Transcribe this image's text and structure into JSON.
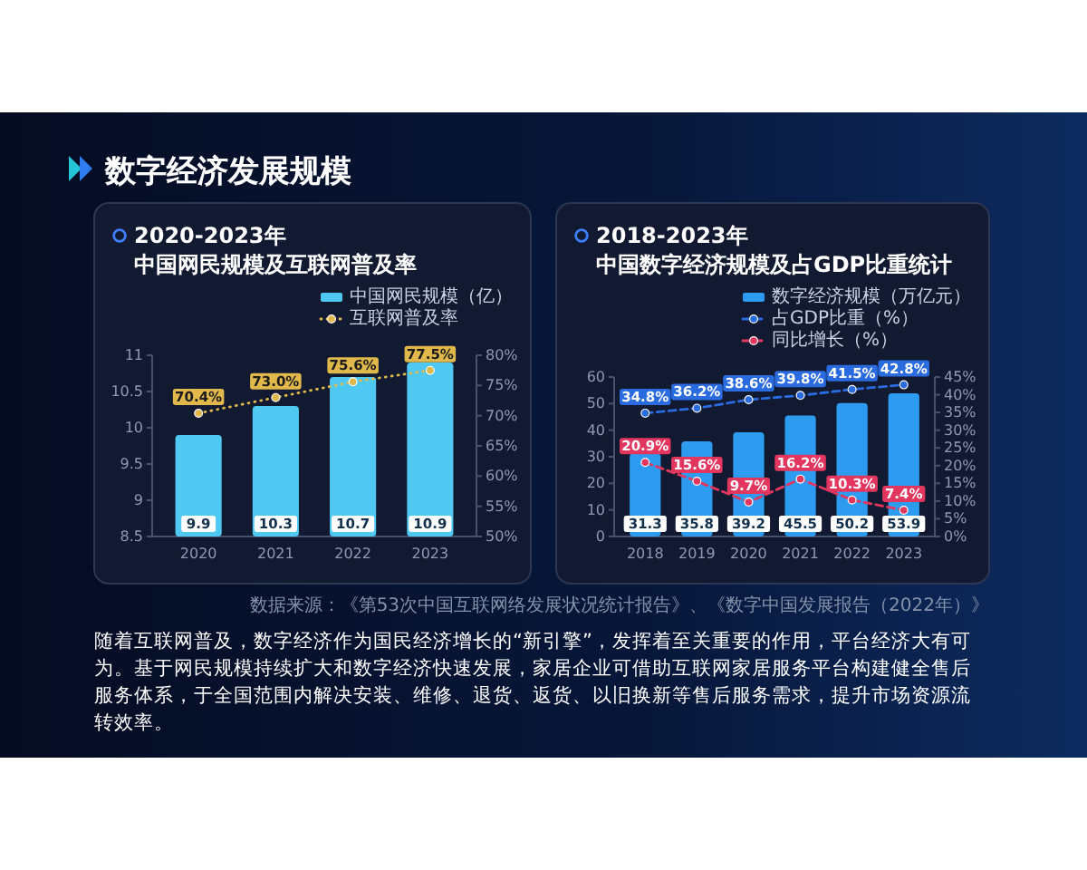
{
  "chart_data": [
    {
      "type": "other",
      "title": "数字经济发展规模"
    },
    {
      "type": "bar",
      "title": "2020-2023年",
      "subtitle": "中国网民规模及互联网普及率",
      "categories": [
        "2020",
        "2021",
        "2022",
        "2023"
      ],
      "series": [
        {
          "name": "中国网民规模（亿）",
          "type": "bar",
          "color": "#4fc8f2",
          "values": [
            9.9,
            10.3,
            10.7,
            10.9
          ],
          "value_labels": [
            "9.9",
            "10.3",
            "10.7",
            "10.9"
          ]
        },
        {
          "name": "互联网普及率",
          "type": "line",
          "axis": "y2",
          "color": "#e0b84c",
          "values": [
            70.4,
            73.0,
            75.6,
            77.5
          ],
          "value_labels": [
            "70.4%",
            "73.0%",
            "75.6%",
            "77.5%"
          ],
          "marker": "circle",
          "line_style": "dotted"
        }
      ],
      "ylim": [
        8.5,
        11
      ],
      "yticks": [
        8.5,
        9,
        9.5,
        10,
        10.5,
        11
      ],
      "y2lim": [
        50,
        80
      ],
      "y2ticks": [
        {
          "value": 50,
          "label": "50%"
        },
        {
          "value": 55,
          "label": "55%"
        },
        {
          "value": 60,
          "label": "60%"
        },
        {
          "value": 65,
          "label": "65%"
        },
        {
          "value": 70,
          "label": "70%"
        },
        {
          "value": 75,
          "label": "75%"
        },
        {
          "value": 80,
          "label": "80%"
        }
      ],
      "legend": "top right"
    },
    {
      "type": "bar",
      "title": "2018-2023年",
      "subtitle": "中国数字经济规模及占GDP比重统计",
      "categories": [
        "2018",
        "2019",
        "2020",
        "2021",
        "2022",
        "2023"
      ],
      "series": [
        {
          "name": "数字经济规模（万亿元）",
          "type": "bar",
          "color": "#2d9cf0",
          "values": [
            31.3,
            35.8,
            39.2,
            45.5,
            50.2,
            53.9
          ],
          "value_labels": [
            "31.3",
            "35.8",
            "39.2",
            "45.5",
            "50.2",
            "53.9"
          ]
        },
        {
          "name": "占GDP比重（%）",
          "type": "line",
          "axis": "y2",
          "color": "#2a6be0",
          "values": [
            34.8,
            36.2,
            38.6,
            39.8,
            41.5,
            42.8
          ],
          "value_labels": [
            "34.8%",
            "36.2%",
            "38.6%",
            "39.8%",
            "41.5%",
            "42.8%"
          ],
          "marker": "circle",
          "line_style": "dashed"
        },
        {
          "name": "同比增长（%）",
          "type": "line",
          "axis": "y2",
          "color": "#e2365f",
          "values": [
            20.9,
            15.6,
            9.7,
            16.2,
            10.3,
            7.4
          ],
          "value_labels": [
            "20.9%",
            "15.6%",
            "9.7%",
            "16.2%",
            "10.3%",
            "7.4%"
          ],
          "marker": "circle",
          "line_style": "dashed"
        }
      ],
      "ylim": [
        0,
        60
      ],
      "yticks": [
        0,
        10,
        20,
        30,
        40,
        50,
        60
      ],
      "y2lim": [
        0,
        45
      ],
      "y2ticks": [
        {
          "value": 0,
          "label": "0%"
        },
        {
          "value": 5,
          "label": "5%"
        },
        {
          "value": 10,
          "label": "10%"
        },
        {
          "value": 15,
          "label": "15%"
        },
        {
          "value": 20,
          "label": "20%"
        },
        {
          "value": 25,
          "label": "25%"
        },
        {
          "value": 30,
          "label": "30%"
        },
        {
          "value": 35,
          "label": "35%"
        },
        {
          "value": 40,
          "label": "40%"
        },
        {
          "value": 45,
          "label": "45%"
        }
      ],
      "legend": "top right"
    },
    {
      "type": "other",
      "annotations": [
        "数据来源：《第53次中国互联网络发展状况统计报告》、《数字中国发展报告（2022年）》",
        "随着互联网普及，数字经济作为国民经济增长的“新引擎”，发挥着至关重要的作用，平台经济大有可为。基于网民规模持续扩大和数字经济快速发展，家居企业可借助互联网家居服务平台构建健全售后服务体系，于全国范围内解决安装、维修、退货、返货、以旧换新等售后服务需求，提升市场资源流转效率。"
      ]
    }
  ]
}
